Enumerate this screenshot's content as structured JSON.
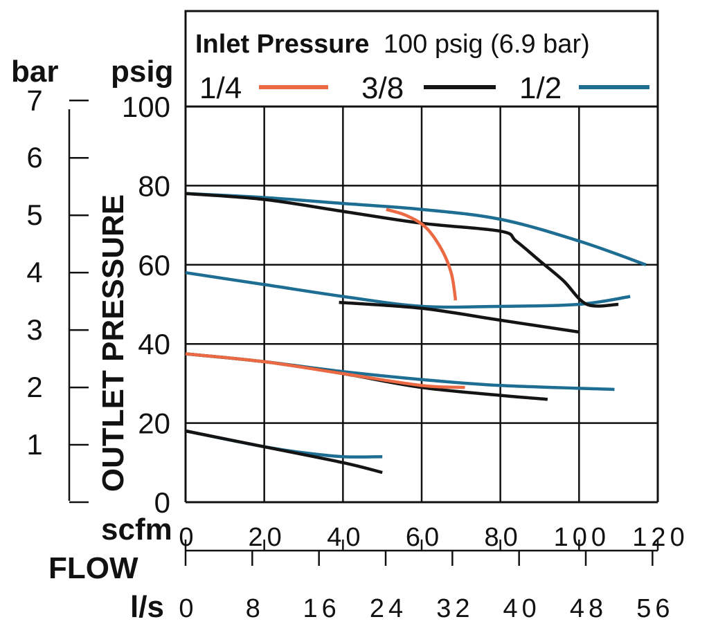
{
  "chart_data": {
    "type": "line",
    "legend": {
      "title_bold": "Inlet Pressure",
      "title_rest": "100 psig (6.9 bar)",
      "placement": "top"
    },
    "ylabel": "OUTLET PRESSURE",
    "xlabel": "FLOW",
    "y_units": {
      "primary": "psig",
      "secondary": "bar"
    },
    "x_units": {
      "primary": "scfm",
      "secondary": "l/s"
    },
    "ylim": [
      0,
      100
    ],
    "xlim": [
      0,
      120
    ],
    "y_ticks": [
      "0",
      "20",
      "40",
      "60",
      "80",
      "100"
    ],
    "bar_ticks": [
      "1",
      "2",
      "3",
      "4",
      "5",
      "6",
      "7"
    ],
    "x_ticks": [
      "0",
      "20",
      "40",
      "60",
      "80",
      "100",
      "120"
    ],
    "ls_ticks": [
      "0",
      "8",
      "16",
      "24",
      "32",
      "40",
      "48",
      "56"
    ],
    "grid": true,
    "series": [
      {
        "name": "1/4",
        "color": "#ec6a43",
        "curves": [
          [
            [
              51,
              74
            ],
            [
              56,
              72.5
            ],
            [
              61,
              69.5
            ],
            [
              65,
              64
            ],
            [
              67.5,
              58
            ],
            [
              68.5,
              52
            ],
            [
              68.5,
              51
            ]
          ],
          [
            [
              0,
              37.5
            ],
            [
              20,
              35.5
            ],
            [
              40,
              32.5
            ],
            [
              60,
              29.5
            ],
            [
              71,
              29
            ]
          ]
        ]
      },
      {
        "name": "3/8",
        "color": "#141414",
        "curves": [
          [
            [
              0,
              78
            ],
            [
              20,
              76.5
            ],
            [
              40,
              73.5
            ],
            [
              60,
              70.5
            ],
            [
              80,
              68.5
            ],
            [
              84,
              66
            ],
            [
              90,
              61
            ],
            [
              96,
              56
            ],
            [
              102,
              50
            ],
            [
              110,
              50
            ]
          ],
          [
            [
              39,
              50.5
            ],
            [
              60,
              49
            ],
            [
              80,
              46
            ],
            [
              100,
              43
            ]
          ],
          [
            [
              0,
              37.5
            ],
            [
              20,
              35.5
            ],
            [
              40,
              32.5
            ],
            [
              60,
              29
            ],
            [
              80,
              27
            ],
            [
              92,
              26
            ]
          ],
          [
            [
              0,
              18
            ],
            [
              20,
              14
            ],
            [
              40,
              10
            ],
            [
              50,
              7.5
            ]
          ]
        ]
      },
      {
        "name": "1/2",
        "color": "#1d6e92",
        "curves": [
          [
            [
              0,
              78
            ],
            [
              20,
              77
            ],
            [
              40,
              75.5
            ],
            [
              60,
              74
            ],
            [
              80,
              71.5
            ],
            [
              100,
              66
            ],
            [
              117,
              60
            ]
          ],
          [
            [
              0,
              58
            ],
            [
              20,
              55
            ],
            [
              40,
              52
            ],
            [
              60,
              49.5
            ],
            [
              80,
              49.5
            ],
            [
              100,
              50
            ],
            [
              113,
              52
            ]
          ],
          [
            [
              0,
              37.5
            ],
            [
              20,
              35.5
            ],
            [
              40,
              33
            ],
            [
              60,
              31
            ],
            [
              80,
              29.5
            ],
            [
              109,
              28.5
            ]
          ],
          [
            [
              0,
              18
            ],
            [
              20,
              14
            ],
            [
              30,
              12.5
            ],
            [
              40,
              11.5
            ],
            [
              50,
              11.5
            ]
          ]
        ]
      }
    ]
  }
}
